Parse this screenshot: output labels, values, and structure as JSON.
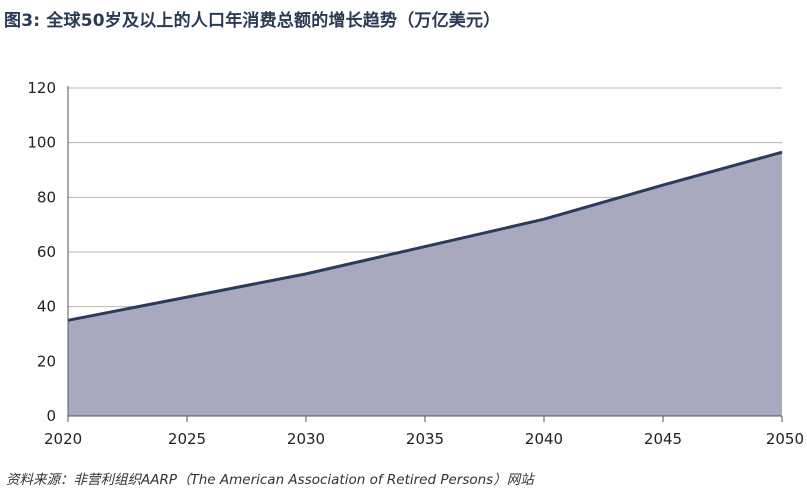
{
  "chart_data": {
    "type": "area",
    "title": "图3: 全球50岁及以上的人口年消费总额的增长趋势（万亿美元）",
    "x": [
      2020,
      2025,
      2030,
      2035,
      2040,
      2045,
      2050
    ],
    "series": [
      {
        "values": [
          35,
          43.5,
          52,
          62,
          72,
          84.5,
          96.5
        ]
      }
    ],
    "xlim": [
      2020,
      2050
    ],
    "ylim": [
      0,
      120
    ],
    "yticks": [
      0,
      20,
      40,
      60,
      80,
      100,
      120
    ],
    "xticks": [
      2020,
      2025,
      2030,
      2035,
      2040,
      2045,
      2050
    ],
    "grid": true,
    "colors": {
      "fill": "#a8a9bf",
      "line": "#2b3b5c",
      "grid": "#b5b5b5",
      "axis": "#555555"
    },
    "source": "资料来源：非营利组织AARP（The American Association of Retired Persons）网站"
  }
}
